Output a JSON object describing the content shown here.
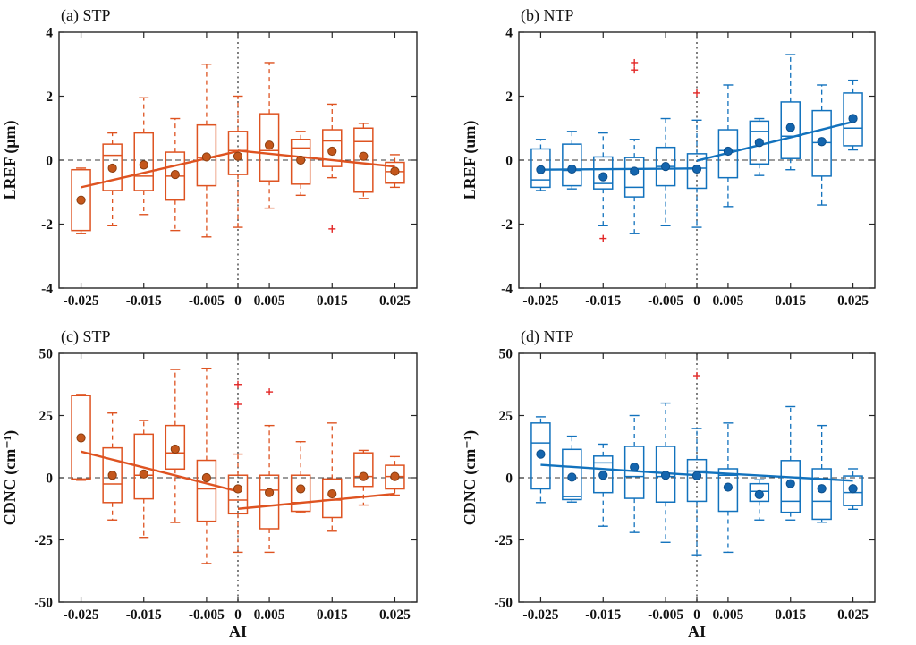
{
  "figure_background": "#ffffff",
  "axes": {
    "x_tick_values": [
      -0.025,
      -0.015,
      -0.005,
      0,
      0.005,
      0.015,
      0.025
    ],
    "x_tick_labels": [
      "-0.025",
      "-0.015",
      "-0.005",
      "0",
      "0.005",
      "0.015",
      "0.025"
    ],
    "reference_line_color": "#3a3a3a",
    "axis_color": "#262626",
    "tick_label_color": "#111111"
  },
  "chart_data": [
    {
      "type": "boxplot",
      "title": "(a) STP",
      "ylabel": "LREF (μm)",
      "xlabel": "",
      "xlim": [
        -0.0285,
        0.0285
      ],
      "ylim": [
        -4,
        4
      ],
      "yticks": [
        -4,
        -2,
        0,
        2,
        4
      ],
      "ytick_labels": [
        "-4",
        "-2",
        "0",
        "2",
        "4"
      ],
      "color": "#DE5321",
      "mean_fill": "#C4571C",
      "mean_edge": "#8B3E10",
      "outlier_color": "#E32726",
      "ref_h": 0,
      "ref_v": 0,
      "boxes": [
        {
          "x": -0.025,
          "q1": -2.2,
          "med": null,
          "q3": -0.3,
          "mean": -1.25,
          "lo": -2.3,
          "hi": -0.25,
          "out": []
        },
        {
          "x": -0.02,
          "q1": -0.95,
          "med": 0.15,
          "q3": 0.5,
          "mean": -0.25,
          "lo": -2.05,
          "hi": 0.85,
          "out": []
        },
        {
          "x": -0.015,
          "q1": -0.95,
          "med": -0.5,
          "q3": 0.85,
          "mean": -0.15,
          "lo": -1.7,
          "hi": 1.95,
          "out": []
        },
        {
          "x": -0.01,
          "q1": -1.25,
          "med": -0.5,
          "q3": 0.25,
          "mean": -0.45,
          "lo": -2.2,
          "hi": 1.3,
          "out": []
        },
        {
          "x": -0.005,
          "q1": -0.8,
          "med": 0.08,
          "q3": 1.1,
          "mean": 0.1,
          "lo": -2.4,
          "hi": 3.0,
          "out": []
        },
        {
          "x": 0,
          "q1": -0.45,
          "med": 0.3,
          "q3": 0.9,
          "mean": 0.12,
          "lo": -2.1,
          "hi": 2.0,
          "out": []
        },
        {
          "x": 0.005,
          "q1": -0.65,
          "med": 0.3,
          "q3": 1.45,
          "mean": 0.47,
          "lo": -1.5,
          "hi": 3.05,
          "out": []
        },
        {
          "x": 0.01,
          "q1": -0.75,
          "med": 0.38,
          "q3": 0.65,
          "mean": 0.0,
          "lo": -1.1,
          "hi": 0.9,
          "out": []
        },
        {
          "x": 0.015,
          "q1": -0.2,
          "med": 0.6,
          "q3": 0.95,
          "mean": 0.28,
          "lo": -0.55,
          "hi": 1.75,
          "out": [
            -2.15
          ]
        },
        {
          "x": 0.02,
          "q1": -1.0,
          "med": 0.58,
          "q3": 1.0,
          "mean": 0.12,
          "lo": -1.2,
          "hi": 1.15,
          "out": []
        },
        {
          "x": 0.025,
          "q1": -0.72,
          "med": -0.36,
          "q3": -0.07,
          "mean": -0.35,
          "lo": -0.85,
          "hi": 0.17,
          "out": []
        }
      ],
      "fit_lines": [
        {
          "x": [
            -0.025,
            0
          ],
          "y": [
            -0.85,
            0.28
          ]
        },
        {
          "x": [
            0,
            0.025
          ],
          "y": [
            0.3,
            -0.2
          ]
        }
      ]
    },
    {
      "type": "boxplot",
      "title": "(b) NTP",
      "ylabel": "LREF (um)",
      "xlabel": "",
      "xlim": [
        -0.0285,
        0.0285
      ],
      "ylim": [
        -4,
        4
      ],
      "yticks": [
        -4,
        -2,
        0,
        2,
        4
      ],
      "ytick_labels": [
        "-4",
        "-2",
        "0",
        "2",
        "4"
      ],
      "color": "#1272BD",
      "mean_fill": "#1465AE",
      "mean_edge": "#0D4F8B",
      "outlier_color": "#E32726",
      "ref_h": 0,
      "ref_v": 0,
      "boxes": [
        {
          "x": -0.025,
          "q1": -0.85,
          "med": -0.62,
          "q3": 0.35,
          "mean": -0.3,
          "lo": -0.95,
          "hi": 0.65,
          "out": []
        },
        {
          "x": -0.02,
          "q1": -0.8,
          "med": -0.32,
          "q3": 0.5,
          "mean": -0.28,
          "lo": -0.9,
          "hi": 0.9,
          "out": []
        },
        {
          "x": -0.015,
          "q1": -0.9,
          "med": -0.73,
          "q3": 0.1,
          "mean": -0.52,
          "lo": -2.05,
          "hi": 0.85,
          "out": [
            -2.45
          ]
        },
        {
          "x": -0.01,
          "q1": -1.15,
          "med": -0.85,
          "q3": 0.08,
          "mean": -0.35,
          "lo": -2.3,
          "hi": 0.65,
          "out": [
            2.82,
            3.05
          ]
        },
        {
          "x": -0.005,
          "q1": -0.8,
          "med": -0.2,
          "q3": 0.4,
          "mean": -0.2,
          "lo": -2.05,
          "hi": 1.3,
          "out": []
        },
        {
          "x": 0,
          "q1": -0.88,
          "med": -0.25,
          "q3": 0.2,
          "mean": -0.28,
          "lo": -2.1,
          "hi": 1.25,
          "out": [
            2.1
          ]
        },
        {
          "x": 0.005,
          "q1": -0.55,
          "med": 0.3,
          "q3": 0.95,
          "mean": 0.28,
          "lo": -1.45,
          "hi": 2.35,
          "out": []
        },
        {
          "x": 0.01,
          "q1": -0.12,
          "med": 0.9,
          "q3": 1.22,
          "mean": 0.55,
          "lo": -0.48,
          "hi": 1.3,
          "out": []
        },
        {
          "x": 0.015,
          "q1": 0.05,
          "med": 0.75,
          "q3": 1.82,
          "mean": 1.02,
          "lo": -0.3,
          "hi": 3.3,
          "out": []
        },
        {
          "x": 0.02,
          "q1": -0.5,
          "med": 0.55,
          "q3": 1.55,
          "mean": 0.58,
          "lo": -1.4,
          "hi": 2.35,
          "out": []
        },
        {
          "x": 0.025,
          "q1": 0.45,
          "med": 1.0,
          "q3": 2.1,
          "mean": 1.3,
          "lo": 0.32,
          "hi": 2.5,
          "out": []
        }
      ],
      "fit_lines": [
        {
          "x": [
            -0.025,
            0
          ],
          "y": [
            -0.3,
            -0.26
          ]
        },
        {
          "x": [
            0,
            0.025
          ],
          "y": [
            -0.02,
            1.2
          ]
        }
      ]
    },
    {
      "type": "boxplot",
      "title": "(c) STP",
      "ylabel": "CDNC (cm⁻¹)",
      "xlabel": "AI",
      "xlim": [
        -0.0285,
        0.0285
      ],
      "ylim": [
        -50,
        50
      ],
      "yticks": [
        -50,
        -25,
        0,
        25,
        50
      ],
      "ytick_labels": [
        "-50",
        "-25",
        "0",
        "25",
        "50"
      ],
      "color": "#DE5321",
      "mean_fill": "#C4571C",
      "mean_edge": "#8B3E10",
      "outlier_color": "#E32726",
      "ref_h": 0,
      "ref_v": 0,
      "boxes": [
        {
          "x": -0.025,
          "q1": -0.5,
          "med": null,
          "q3": 33,
          "mean": 16,
          "lo": -1,
          "hi": 33.5,
          "out": []
        },
        {
          "x": -0.02,
          "q1": -10,
          "med": -2.5,
          "q3": 12,
          "mean": 1,
          "lo": -17,
          "hi": 26,
          "out": []
        },
        {
          "x": -0.015,
          "q1": -8.5,
          "med": 1,
          "q3": 17.5,
          "mean": 1.5,
          "lo": -24,
          "hi": 23,
          "out": []
        },
        {
          "x": -0.01,
          "q1": 3.5,
          "med": 10,
          "q3": 21,
          "mean": 11.5,
          "lo": -18,
          "hi": 43.5,
          "out": []
        },
        {
          "x": -0.005,
          "q1": -17.5,
          "med": -4.5,
          "q3": 7,
          "mean": 0,
          "lo": -34.5,
          "hi": 44,
          "out": []
        },
        {
          "x": 0,
          "q1": -14.5,
          "med": -9,
          "q3": 1,
          "mean": -4.5,
          "lo": -30,
          "hi": 9.5,
          "out": [
            29.5,
            37.5
          ]
        },
        {
          "x": 0.005,
          "q1": -20.5,
          "med": -5,
          "q3": 1,
          "mean": -6,
          "lo": -30,
          "hi": 21,
          "out": [
            34.5
          ]
        },
        {
          "x": 0.01,
          "q1": -13.5,
          "med": -10,
          "q3": 1,
          "mean": -4.5,
          "lo": -14,
          "hi": 14.5,
          "out": []
        },
        {
          "x": 0.015,
          "q1": -16,
          "med": -9,
          "q3": -0.5,
          "mean": -6.5,
          "lo": -21.5,
          "hi": 22,
          "out": []
        },
        {
          "x": 0.02,
          "q1": -3.5,
          "med": 0.5,
          "q3": 10,
          "mean": 0.5,
          "lo": -11,
          "hi": 11,
          "out": []
        },
        {
          "x": 0.025,
          "q1": -4.5,
          "med": 0.5,
          "q3": 5,
          "mean": 0.5,
          "lo": -7,
          "hi": 8.5,
          "out": []
        }
      ],
      "fit_lines": [
        {
          "x": [
            -0.025,
            0
          ],
          "y": [
            10.5,
            -5.5
          ]
        },
        {
          "x": [
            0,
            0.025
          ],
          "y": [
            -12.5,
            -6.5
          ]
        }
      ]
    },
    {
      "type": "boxplot",
      "title": "(d) NTP",
      "ylabel": "CDNC (cm⁻¹)",
      "xlabel": "AI",
      "xlim": [
        -0.0285,
        0.0285
      ],
      "ylim": [
        -50,
        50
      ],
      "yticks": [
        -50,
        -25,
        0,
        25,
        50
      ],
      "ytick_labels": [
        "-50",
        "-25",
        "0",
        "25",
        "50"
      ],
      "color": "#1272BD",
      "mean_fill": "#1465AE",
      "mean_edge": "#0D4F8B",
      "outlier_color": "#E32726",
      "ref_h": 0,
      "ref_v": 0,
      "boxes": [
        {
          "x": -0.025,
          "q1": -4.5,
          "med": 14,
          "q3": 22,
          "mean": 9.5,
          "lo": -10,
          "hi": 24.5,
          "out": []
        },
        {
          "x": -0.02,
          "q1": -8.8,
          "med": -7.6,
          "q3": 11.4,
          "mean": 0.2,
          "lo": -9.8,
          "hi": 16.7,
          "out": []
        },
        {
          "x": -0.015,
          "q1": -6,
          "med": 6.0,
          "q3": 8.7,
          "mean": 1,
          "lo": -19.5,
          "hi": 13.5,
          "out": []
        },
        {
          "x": -0.01,
          "q1": -8.3,
          "med": 0.5,
          "q3": 12.6,
          "mean": 4.3,
          "lo": -22,
          "hi": 25,
          "out": []
        },
        {
          "x": -0.005,
          "q1": -9.8,
          "med": 0.5,
          "q3": 12.6,
          "mean": 1,
          "lo": -26,
          "hi": 30,
          "out": []
        },
        {
          "x": 0,
          "q1": -9.5,
          "med": 2.7,
          "q3": 7.3,
          "mean": 0.8,
          "lo": -31,
          "hi": 19.8,
          "out": [
            41
          ]
        },
        {
          "x": 0.005,
          "q1": -13.5,
          "med": 1,
          "q3": 3.6,
          "mean": -3.8,
          "lo": -30,
          "hi": 22,
          "out": []
        },
        {
          "x": 0.01,
          "q1": -9.5,
          "med": -5.5,
          "q3": -2.4,
          "mean": -6.8,
          "lo": -17,
          "hi": -0.8,
          "out": []
        },
        {
          "x": 0.015,
          "q1": -13.9,
          "med": -9.5,
          "q3": 6.9,
          "mean": -2.4,
          "lo": -17,
          "hi": 28.6,
          "out": []
        },
        {
          "x": 0.02,
          "q1": -16.7,
          "med": -9.5,
          "q3": 3.6,
          "mean": -4.4,
          "lo": -17.9,
          "hi": 21,
          "out": []
        },
        {
          "x": 0.025,
          "q1": -11.2,
          "med": -6,
          "q3": 0.7,
          "mean": -4.4,
          "lo": -12.7,
          "hi": 3.6,
          "out": []
        }
      ],
      "fit_lines": [
        {
          "x": [
            -0.025,
            0
          ],
          "y": [
            5.2,
            1.0
          ]
        },
        {
          "x": [
            0,
            0.025
          ],
          "y": [
            2.3,
            -1.2
          ]
        }
      ]
    }
  ]
}
